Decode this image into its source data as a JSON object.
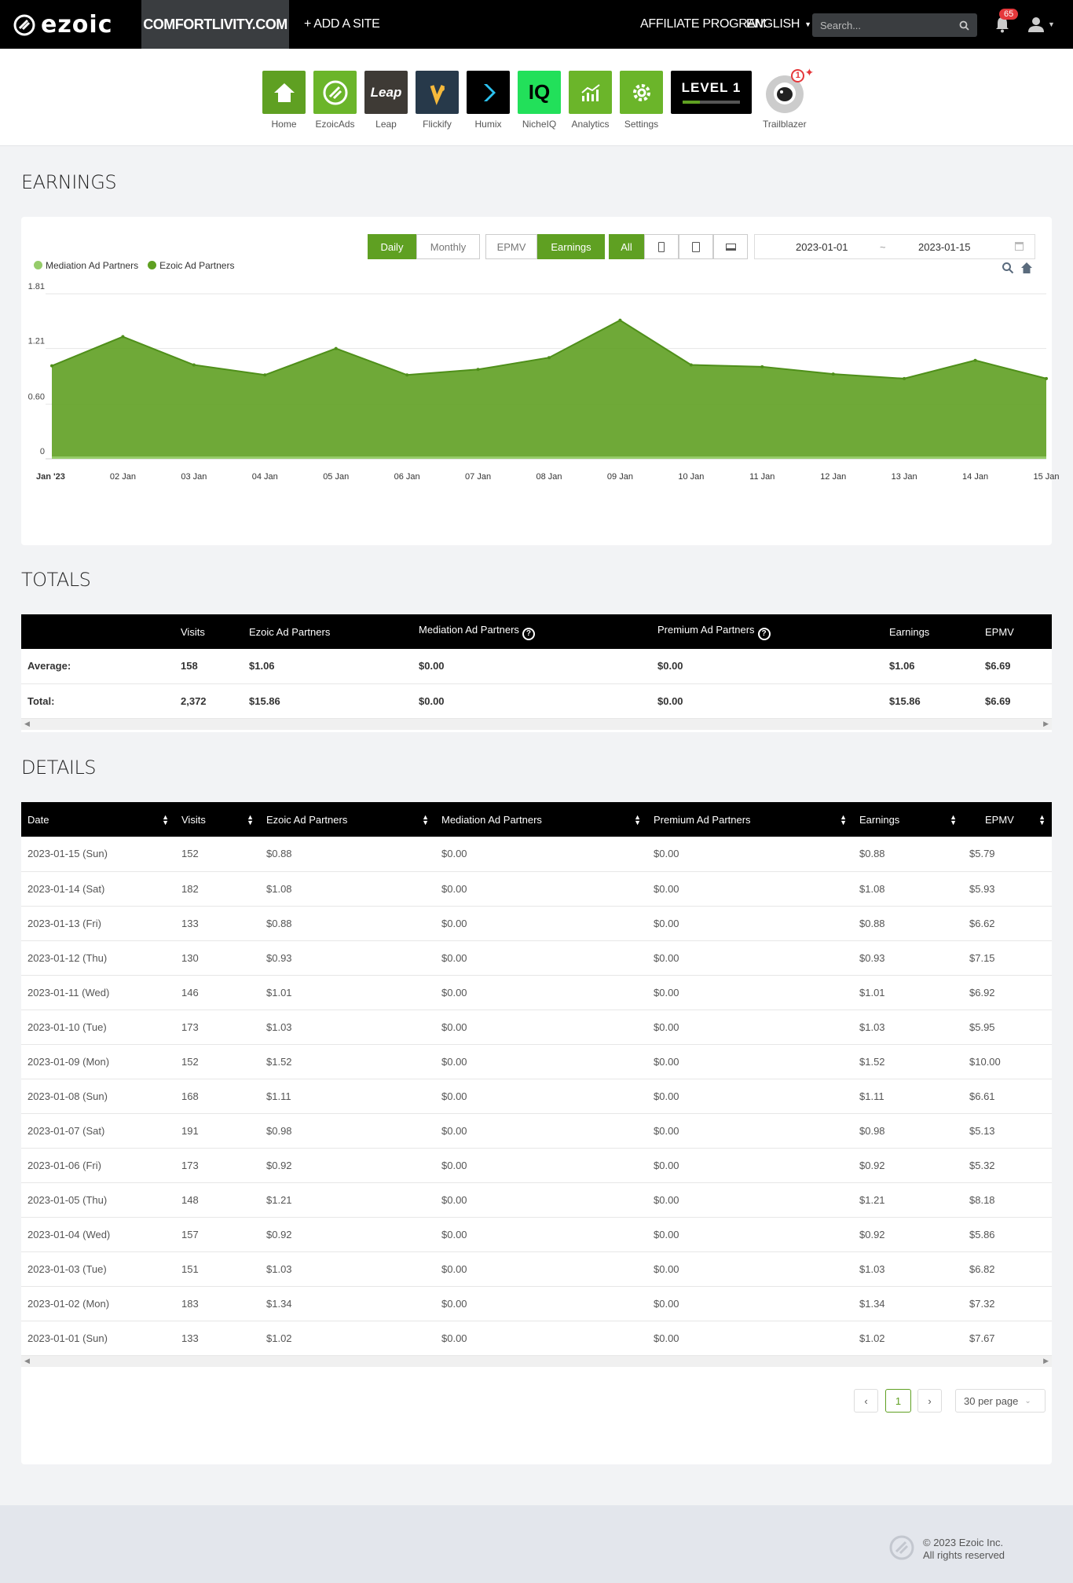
{
  "topbar": {
    "logo": "ezoic",
    "site": "COMFORTLIVITY.COM",
    "add_site": "+ ADD A SITE",
    "affiliate": "AFFILIATE PROGRAM",
    "language": "ENGLISH",
    "search_placeholder": "Search...",
    "notifications": "65"
  },
  "apps": [
    {
      "label": "Home",
      "icon": "home-icon",
      "color": "#5fa022"
    },
    {
      "label": "EzoicAds",
      "icon": "ezoicads-icon",
      "color": "#6bb52a"
    },
    {
      "label": "Leap",
      "icon": "leap-icon",
      "color": "#3e3a35"
    },
    {
      "label": "Flickify",
      "icon": "flickify-icon",
      "color": "#27394a"
    },
    {
      "label": "Humix",
      "icon": "humix-icon",
      "color": "#000000"
    },
    {
      "label": "NicheIQ",
      "icon": "nicheiq-icon",
      "color": "#22e05a"
    },
    {
      "label": "Analytics",
      "icon": "analytics-icon",
      "color": "#6bb52a"
    },
    {
      "label": "Settings",
      "icon": "settings-icon",
      "color": "#6bb52a"
    },
    {
      "label": "Trailblazer",
      "icon": "astronaut-icon",
      "color": "#cccccc"
    }
  ],
  "level_badge": "LEVEL 1",
  "trailblazer_badge": "1",
  "earnings": {
    "title": "EARNINGS",
    "buttons": {
      "daily": "Daily",
      "monthly": "Monthly",
      "epmv": "EPMV",
      "earnings": "Earnings",
      "all": "All"
    },
    "date_from": "2023-01-01",
    "date_sep": "~",
    "date_to": "2023-01-15"
  },
  "chart_data": {
    "type": "area",
    "categories": [
      "Jan '23",
      "02 Jan",
      "03 Jan",
      "04 Jan",
      "05 Jan",
      "06 Jan",
      "07 Jan",
      "08 Jan",
      "09 Jan",
      "10 Jan",
      "11 Jan",
      "12 Jan",
      "13 Jan",
      "14 Jan",
      "15 Jan"
    ],
    "series": [
      {
        "name": "Mediation Ad Partners",
        "values": [
          0,
          0,
          0,
          0,
          0,
          0,
          0,
          0,
          0,
          0,
          0,
          0,
          0,
          0,
          0
        ],
        "color": "#96cc6a"
      },
      {
        "name": "Ezoic Ad Partners",
        "values": [
          1.02,
          1.34,
          1.03,
          0.92,
          1.21,
          0.92,
          0.98,
          1.11,
          1.52,
          1.03,
          1.01,
          0.93,
          0.88,
          1.08,
          0.88
        ],
        "color": "#5fa022"
      }
    ],
    "yticks": [
      "0",
      "0.60",
      "1.21",
      "1.81"
    ],
    "ylim": [
      0,
      1.81
    ],
    "legend_position": "top-left",
    "grid": true
  },
  "totals": {
    "title": "TOTALS",
    "headers": [
      "",
      "Visits",
      "Ezoic Ad Partners",
      "Mediation Ad Partners",
      "Premium Ad Partners",
      "Earnings",
      "EPMV"
    ],
    "rows": [
      [
        "Average:",
        "158",
        "$1.06",
        "$0.00",
        "$0.00",
        "$1.06",
        "$6.69"
      ],
      [
        "Total:",
        "2,372",
        "$15.86",
        "$0.00",
        "$0.00",
        "$15.86",
        "$6.69"
      ]
    ]
  },
  "details": {
    "title": "DETAILS",
    "headers": [
      "Date",
      "Visits",
      "Ezoic Ad Partners",
      "Mediation Ad Partners",
      "Premium Ad Partners",
      "Earnings",
      "EPMV"
    ],
    "rows": [
      [
        "2023-01-15 (Sun)",
        "152",
        "$0.88",
        "$0.00",
        "$0.00",
        "$0.88",
        "$5.79"
      ],
      [
        "2023-01-14 (Sat)",
        "182",
        "$1.08",
        "$0.00",
        "$0.00",
        "$1.08",
        "$5.93"
      ],
      [
        "2023-01-13 (Fri)",
        "133",
        "$0.88",
        "$0.00",
        "$0.00",
        "$0.88",
        "$6.62"
      ],
      [
        "2023-01-12 (Thu)",
        "130",
        "$0.93",
        "$0.00",
        "$0.00",
        "$0.93",
        "$7.15"
      ],
      [
        "2023-01-11 (Wed)",
        "146",
        "$1.01",
        "$0.00",
        "$0.00",
        "$1.01",
        "$6.92"
      ],
      [
        "2023-01-10 (Tue)",
        "173",
        "$1.03",
        "$0.00",
        "$0.00",
        "$1.03",
        "$5.95"
      ],
      [
        "2023-01-09 (Mon)",
        "152",
        "$1.52",
        "$0.00",
        "$0.00",
        "$1.52",
        "$10.00"
      ],
      [
        "2023-01-08 (Sun)",
        "168",
        "$1.11",
        "$0.00",
        "$0.00",
        "$1.11",
        "$6.61"
      ],
      [
        "2023-01-07 (Sat)",
        "191",
        "$0.98",
        "$0.00",
        "$0.00",
        "$0.98",
        "$5.13"
      ],
      [
        "2023-01-06 (Fri)",
        "173",
        "$0.92",
        "$0.00",
        "$0.00",
        "$0.92",
        "$5.32"
      ],
      [
        "2023-01-05 (Thu)",
        "148",
        "$1.21",
        "$0.00",
        "$0.00",
        "$1.21",
        "$8.18"
      ],
      [
        "2023-01-04 (Wed)",
        "157",
        "$0.92",
        "$0.00",
        "$0.00",
        "$0.92",
        "$5.86"
      ],
      [
        "2023-01-03 (Tue)",
        "151",
        "$1.03",
        "$0.00",
        "$0.00",
        "$1.03",
        "$6.82"
      ],
      [
        "2023-01-02 (Mon)",
        "183",
        "$1.34",
        "$0.00",
        "$0.00",
        "$1.34",
        "$7.32"
      ],
      [
        "2023-01-01 (Sun)",
        "133",
        "$1.02",
        "$0.00",
        "$0.00",
        "$1.02",
        "$7.67"
      ]
    ],
    "page": "1",
    "per_page": "30 per page"
  },
  "footer": {
    "copyright": "© 2023 Ezoic Inc.",
    "rights": "All rights reserved"
  }
}
